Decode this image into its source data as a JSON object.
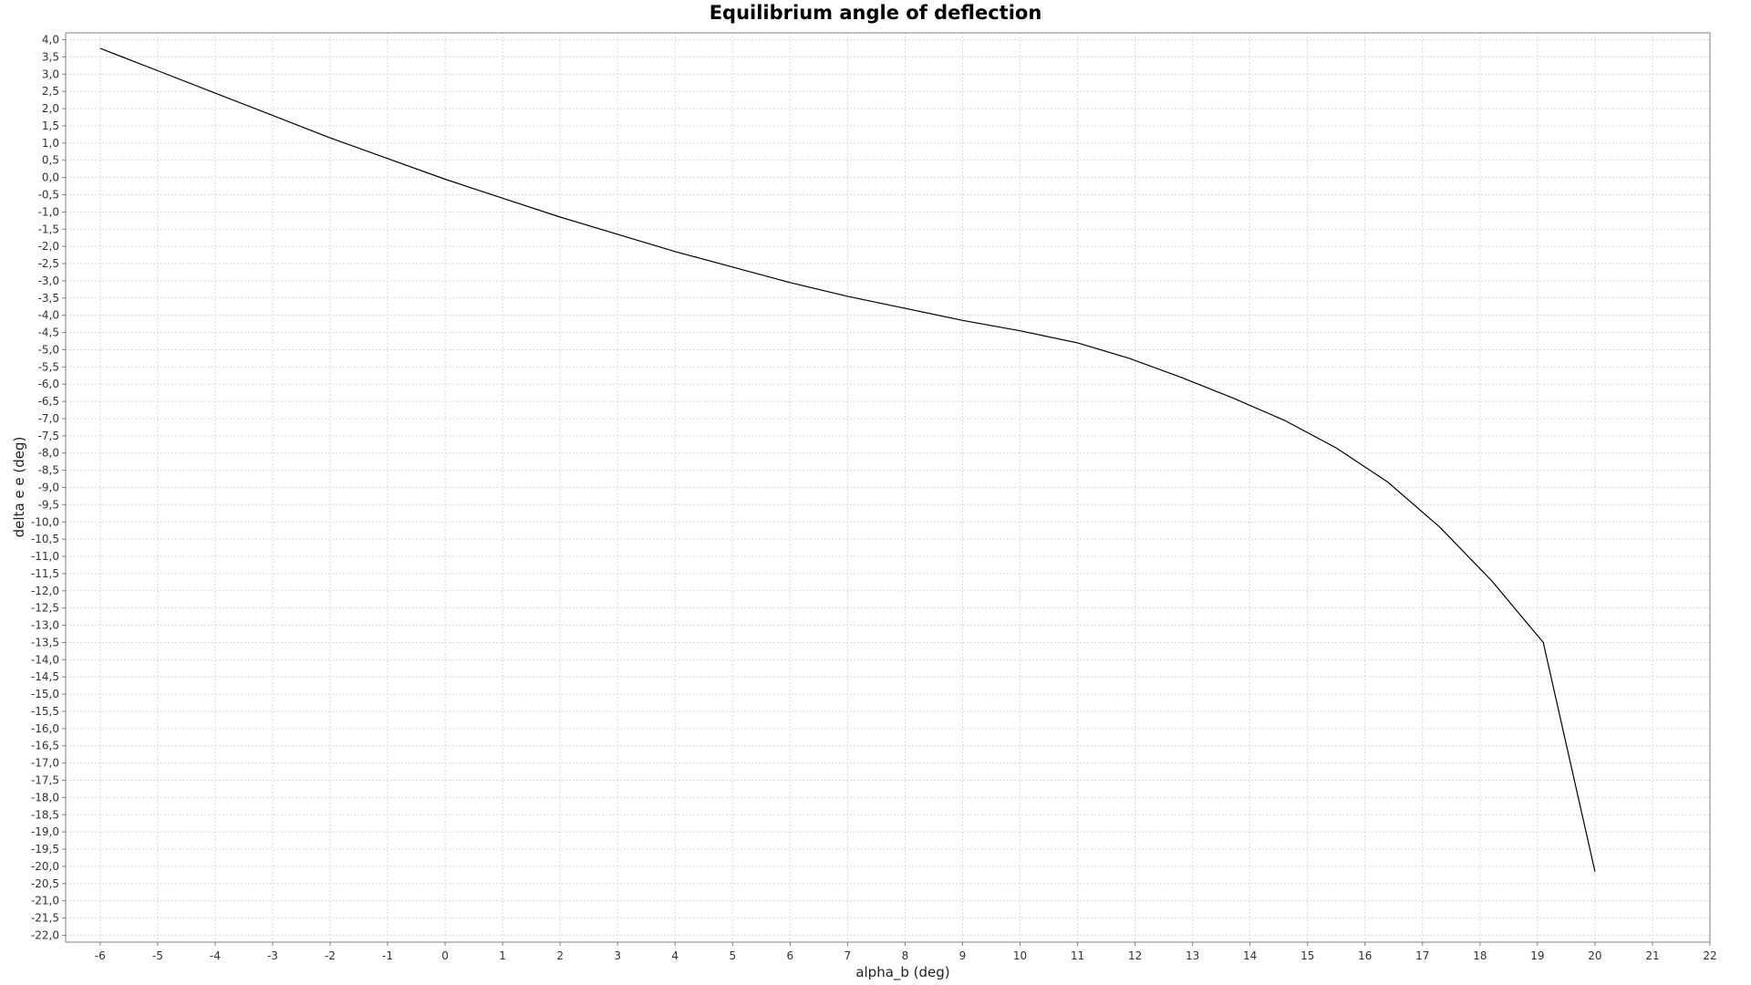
{
  "chart_data": {
    "type": "line",
    "title": "Equilibrium angle of deflection",
    "xlabel": "alpha_b (deg)",
    "ylabel": "delta e e  (deg)",
    "xlim": [
      -6.6,
      22
    ],
    "ylim": [
      -22.2,
      4.2
    ],
    "grid": true,
    "legend": "none",
    "line_color": "#000000",
    "x_ticks": [
      "-6",
      "-5",
      "-4",
      "-3",
      "-2",
      "-1",
      "0",
      "1",
      "2",
      "3",
      "4",
      "5",
      "6",
      "7",
      "8",
      "9",
      "10",
      "11",
      "12",
      "13",
      "14",
      "15",
      "16",
      "17",
      "18",
      "19",
      "20",
      "21",
      "22"
    ],
    "y_ticks": [
      "4,0",
      "3,5",
      "3,0",
      "2,5",
      "2,0",
      "1,5",
      "1,0",
      "0,5",
      "0,0",
      "-0,5",
      "-1,0",
      "-1,5",
      "-2,0",
      "-2,5",
      "-3,0",
      "-3,5",
      "-4,0",
      "-4,5",
      "-5,0",
      "-5,5",
      "-6,0",
      "-6,5",
      "-7,0",
      "-7,5",
      "-8,0",
      "-8,5",
      "-9,0",
      "-9,5",
      "-10,0",
      "-10,5",
      "-11,0",
      "-11,5",
      "-12,0",
      "-12,5",
      "-13,0",
      "-13,5",
      "-14,0",
      "-14,5",
      "-15,0",
      "-15,5",
      "-16,0",
      "-16,5",
      "-17,0",
      "-17,5",
      "-18,0",
      "-18,5",
      "-19,0",
      "-19,5",
      "-20,0",
      "-20,5",
      "-21,0",
      "-21,5",
      "-22,0"
    ],
    "series": [
      {
        "x": [
          -6,
          -5,
          -4,
          -3,
          -2,
          -1,
          0,
          1,
          2,
          3,
          4,
          5,
          6,
          7,
          8,
          9,
          10,
          11,
          11.9,
          12.8,
          13.7,
          14.6,
          15.5,
          16.4,
          17.3,
          18.2,
          19.1,
          20
        ],
        "y": [
          3.75,
          3.1,
          2.45,
          1.8,
          1.15,
          0.55,
          -0.05,
          -0.6,
          -1.15,
          -1.65,
          -2.15,
          -2.6,
          -3.05,
          -3.45,
          -3.8,
          -4.15,
          -4.45,
          -4.8,
          -5.25,
          -5.8,
          -6.4,
          -7.05,
          -7.85,
          -8.85,
          -10.15,
          -11.7,
          -13.5,
          -20.15
        ]
      }
    ]
  }
}
